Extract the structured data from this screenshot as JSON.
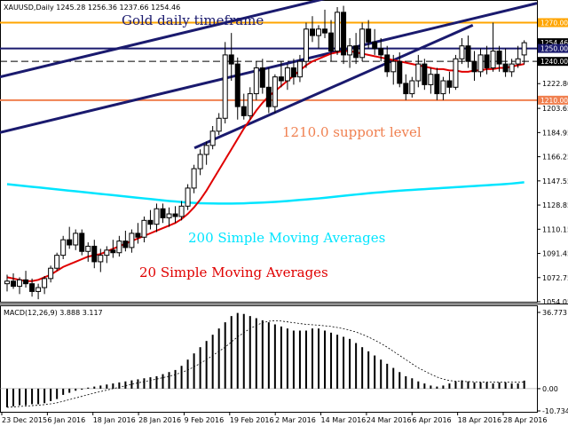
{
  "chart_data": [
    {
      "type": "candlestick",
      "symbol_info": "XAUUSD,Daily  1245.28 1256.36 1237.66 1254.46",
      "title": "Gold daily timeframe",
      "ylim": [
        1054.05,
        1287.5
      ],
      "y_ticks": [
        "1270.00",
        "1254.46",
        "1250.00",
        "1240.00",
        "1222.80",
        "1210.00",
        "1203.65",
        "1184.95",
        "1166.25",
        "1147.55",
        "1128.85",
        "1110.15",
        "1091.45",
        "1072.75",
        "1054.05"
      ],
      "tagged_levels": [
        {
          "label": "1270.00",
          "value": 1270.0,
          "color": "#ffa500"
        },
        {
          "label": "1254.46",
          "value": 1254.46,
          "color": "#000000"
        },
        {
          "label": "1250.00",
          "value": 1250.0,
          "color": "#1a1a6e"
        },
        {
          "label": "1240.00",
          "value": 1240.0,
          "color": "#000000"
        },
        {
          "label": "1210.00",
          "value": 1210.0,
          "color": "#f08050"
        }
      ],
      "x_labels": [
        "23 Dec 2015",
        "6 Jan 2016",
        "18 Jan 2016",
        "28 Jan 2016",
        "9 Feb 2016",
        "19 Feb 2016",
        "2 Mar 2016",
        "14 Mar 2016",
        "24 Mar 2016",
        "6 Apr 2016",
        "18 Apr 2016",
        "28 Apr 2016"
      ],
      "horizontal_lines": [
        {
          "value": 1270.0,
          "color": "#ffa500",
          "style": "solid"
        },
        {
          "value": 1250.0,
          "color": "#1a1a6e",
          "style": "solid"
        },
        {
          "value": 1240.0,
          "color": "#000000",
          "style": "dashed"
        },
        {
          "value": 1210.0,
          "color": "#f08050",
          "style": "solid"
        }
      ],
      "candles": [
        {
          "o": 1068,
          "h": 1075,
          "l": 1062,
          "c": 1070
        },
        {
          "o": 1070,
          "h": 1076,
          "l": 1064,
          "c": 1066
        },
        {
          "o": 1066,
          "h": 1073,
          "l": 1060,
          "c": 1071
        },
        {
          "o": 1071,
          "h": 1078,
          "l": 1065,
          "c": 1068
        },
        {
          "o": 1068,
          "h": 1072,
          "l": 1058,
          "c": 1062
        },
        {
          "o": 1062,
          "h": 1068,
          "l": 1056,
          "c": 1065
        },
        {
          "o": 1065,
          "h": 1074,
          "l": 1060,
          "c": 1072
        },
        {
          "o": 1072,
          "h": 1082,
          "l": 1069,
          "c": 1080
        },
        {
          "o": 1080,
          "h": 1092,
          "l": 1078,
          "c": 1090
        },
        {
          "o": 1090,
          "h": 1105,
          "l": 1087,
          "c": 1102
        },
        {
          "o": 1102,
          "h": 1112,
          "l": 1095,
          "c": 1098
        },
        {
          "o": 1098,
          "h": 1110,
          "l": 1094,
          "c": 1107
        },
        {
          "o": 1107,
          "h": 1110,
          "l": 1090,
          "c": 1093
        },
        {
          "o": 1093,
          "h": 1100,
          "l": 1085,
          "c": 1097
        },
        {
          "o": 1097,
          "h": 1102,
          "l": 1080,
          "c": 1085
        },
        {
          "o": 1085,
          "h": 1095,
          "l": 1077,
          "c": 1090
        },
        {
          "o": 1090,
          "h": 1097,
          "l": 1084,
          "c": 1094
        },
        {
          "o": 1094,
          "h": 1102,
          "l": 1088,
          "c": 1092
        },
        {
          "o": 1092,
          "h": 1105,
          "l": 1089,
          "c": 1101
        },
        {
          "o": 1101,
          "h": 1109,
          "l": 1093,
          "c": 1096
        },
        {
          "o": 1096,
          "h": 1110,
          "l": 1092,
          "c": 1107
        },
        {
          "o": 1107,
          "h": 1115,
          "l": 1099,
          "c": 1104
        },
        {
          "o": 1104,
          "h": 1120,
          "l": 1100,
          "c": 1117
        },
        {
          "o": 1117,
          "h": 1125,
          "l": 1110,
          "c": 1114
        },
        {
          "o": 1114,
          "h": 1130,
          "l": 1108,
          "c": 1126
        },
        {
          "o": 1126,
          "h": 1130,
          "l": 1115,
          "c": 1119
        },
        {
          "o": 1119,
          "h": 1127,
          "l": 1112,
          "c": 1122
        },
        {
          "o": 1122,
          "h": 1128,
          "l": 1115,
          "c": 1120
        },
        {
          "o": 1120,
          "h": 1132,
          "l": 1117,
          "c": 1128
        },
        {
          "o": 1128,
          "h": 1145,
          "l": 1125,
          "c": 1142
        },
        {
          "o": 1142,
          "h": 1160,
          "l": 1138,
          "c": 1157
        },
        {
          "o": 1157,
          "h": 1172,
          "l": 1152,
          "c": 1168
        },
        {
          "o": 1168,
          "h": 1178,
          "l": 1160,
          "c": 1175
        },
        {
          "o": 1175,
          "h": 1190,
          "l": 1172,
          "c": 1186
        },
        {
          "o": 1186,
          "h": 1200,
          "l": 1183,
          "c": 1196
        },
        {
          "o": 1196,
          "h": 1255,
          "l": 1192,
          "c": 1245
        },
        {
          "o": 1245,
          "h": 1262,
          "l": 1225,
          "c": 1238
        },
        {
          "o": 1238,
          "h": 1243,
          "l": 1195,
          "c": 1205
        },
        {
          "o": 1205,
          "h": 1215,
          "l": 1195,
          "c": 1198
        },
        {
          "o": 1198,
          "h": 1220,
          "l": 1195,
          "c": 1215
        },
        {
          "o": 1215,
          "h": 1240,
          "l": 1210,
          "c": 1235
        },
        {
          "o": 1235,
          "h": 1242,
          "l": 1215,
          "c": 1220
        },
        {
          "o": 1220,
          "h": 1235,
          "l": 1200,
          "c": 1205
        },
        {
          "o": 1205,
          "h": 1230,
          "l": 1200,
          "c": 1228
        },
        {
          "o": 1228,
          "h": 1240,
          "l": 1220,
          "c": 1225
        },
        {
          "o": 1225,
          "h": 1238,
          "l": 1218,
          "c": 1235
        },
        {
          "o": 1235,
          "h": 1242,
          "l": 1222,
          "c": 1228
        },
        {
          "o": 1228,
          "h": 1245,
          "l": 1224,
          "c": 1240
        },
        {
          "o": 1240,
          "h": 1270,
          "l": 1235,
          "c": 1265
        },
        {
          "o": 1265,
          "h": 1275,
          "l": 1255,
          "c": 1260
        },
        {
          "o": 1260,
          "h": 1268,
          "l": 1250,
          "c": 1265
        },
        {
          "o": 1265,
          "h": 1280,
          "l": 1258,
          "c": 1262
        },
        {
          "o": 1262,
          "h": 1272,
          "l": 1240,
          "c": 1248
        },
        {
          "o": 1248,
          "h": 1282,
          "l": 1245,
          "c": 1278
        },
        {
          "o": 1278,
          "h": 1283,
          "l": 1238,
          "c": 1245
        },
        {
          "o": 1245,
          "h": 1258,
          "l": 1235,
          "c": 1252
        },
        {
          "o": 1252,
          "h": 1262,
          "l": 1238,
          "c": 1243
        },
        {
          "o": 1243,
          "h": 1270,
          "l": 1240,
          "c": 1265
        },
        {
          "o": 1265,
          "h": 1272,
          "l": 1250,
          "c": 1255
        },
        {
          "o": 1255,
          "h": 1265,
          "l": 1245,
          "c": 1250
        },
        {
          "o": 1250,
          "h": 1258,
          "l": 1240,
          "c": 1245
        },
        {
          "o": 1245,
          "h": 1252,
          "l": 1228,
          "c": 1232
        },
        {
          "o": 1232,
          "h": 1245,
          "l": 1222,
          "c": 1240
        },
        {
          "o": 1240,
          "h": 1247,
          "l": 1220,
          "c": 1223
        },
        {
          "o": 1223,
          "h": 1230,
          "l": 1210,
          "c": 1215
        },
        {
          "o": 1215,
          "h": 1228,
          "l": 1212,
          "c": 1225
        },
        {
          "o": 1225,
          "h": 1245,
          "l": 1220,
          "c": 1238
        },
        {
          "o": 1238,
          "h": 1242,
          "l": 1218,
          "c": 1222
        },
        {
          "o": 1222,
          "h": 1235,
          "l": 1215,
          "c": 1230
        },
        {
          "o": 1230,
          "h": 1235,
          "l": 1210,
          "c": 1215
        },
        {
          "o": 1215,
          "h": 1228,
          "l": 1210,
          "c": 1225
        },
        {
          "o": 1225,
          "h": 1232,
          "l": 1215,
          "c": 1220
        },
        {
          "o": 1220,
          "h": 1245,
          "l": 1218,
          "c": 1242
        },
        {
          "o": 1242,
          "h": 1258,
          "l": 1238,
          "c": 1252
        },
        {
          "o": 1252,
          "h": 1260,
          "l": 1235,
          "c": 1240
        },
        {
          "o": 1240,
          "h": 1248,
          "l": 1225,
          "c": 1232
        },
        {
          "o": 1232,
          "h": 1250,
          "l": 1228,
          "c": 1245
        },
        {
          "o": 1245,
          "h": 1252,
          "l": 1230,
          "c": 1235
        },
        {
          "o": 1235,
          "h": 1270,
          "l": 1232,
          "c": 1248
        },
        {
          "o": 1248,
          "h": 1252,
          "l": 1232,
          "c": 1238
        },
        {
          "o": 1238,
          "h": 1250,
          "l": 1228,
          "c": 1232
        },
        {
          "o": 1232,
          "h": 1242,
          "l": 1228,
          "c": 1238
        },
        {
          "o": 1238,
          "h": 1252,
          "l": 1235,
          "c": 1242
        },
        {
          "o": 1245,
          "h": 1256.36,
          "l": 1237.66,
          "c": 1254.46
        }
      ],
      "trendlines": [
        {
          "name": "lower channel line",
          "x": [
            "23 Dec 2015",
            "28 Apr 2016"
          ],
          "y": [
            1185,
            1285
          ],
          "color": "#1a1a6e"
        },
        {
          "name": "upper channel line",
          "x": [
            "23 Dec 2015",
            "28 Apr 2016"
          ],
          "y": [
            1228,
            1328
          ],
          "color": "#1a1a6e"
        },
        {
          "name": "rising support line",
          "x": [
            "9 Feb 2016",
            "18 Apr 2016"
          ],
          "y": [
            1173,
            1268
          ],
          "color": "#1a1a6e"
        }
      ],
      "sma20": {
        "name": "20 Simple Moving Averages",
        "color": "#e00000",
        "values": [
          1073,
          1072,
          1071,
          1070,
          1070,
          1071,
          1073,
          1075,
          1078,
          1081,
          1083,
          1085,
          1087,
          1089,
          1090,
          1091,
          1093,
          1095,
          1097,
          1099,
          1101,
          1103,
          1105,
          1107,
          1109,
          1111,
          1113,
          1115,
          1118,
          1122,
          1127,
          1133,
          1140,
          1148,
          1156,
          1164,
          1172,
          1180,
          1188,
          1195,
          1202,
          1208,
          1213,
          1217,
          1221,
          1225,
          1229,
          1233,
          1237,
          1240,
          1242,
          1244,
          1246,
          1247,
          1248,
          1248,
          1247,
          1246,
          1245,
          1244,
          1243,
          1242,
          1241,
          1240,
          1239,
          1238,
          1237,
          1236,
          1235,
          1234,
          1234,
          1233,
          1233,
          1232,
          1232,
          1233,
          1233,
          1234,
          1234,
          1235,
          1235,
          1236,
          1237,
          1238
        ]
      },
      "sma200": {
        "name": "200 Simple Moving Averages",
        "color": "#00e5ff",
        "values": [
          1145,
          1144.5,
          1144,
          1143.5,
          1143,
          1142.5,
          1142,
          1141.5,
          1141,
          1140.5,
          1140,
          1139.5,
          1139,
          1138.5,
          1138,
          1137.5,
          1137,
          1136.5,
          1136,
          1135.5,
          1135,
          1134.5,
          1134,
          1133.5,
          1133,
          1132.5,
          1132,
          1131.6,
          1131.2,
          1130.8,
          1130.5,
          1130.3,
          1130.2,
          1130.1,
          1130,
          1130,
          1130,
          1130.1,
          1130.2,
          1130.4,
          1130.6,
          1130.8,
          1131,
          1131.3,
          1131.6,
          1132,
          1132.4,
          1132.8,
          1133.2,
          1133.6,
          1134,
          1134.5,
          1135,
          1135.5,
          1136,
          1136.5,
          1137,
          1137.5,
          1138,
          1138.4,
          1138.8,
          1139.2,
          1139.6,
          1140,
          1140.3,
          1140.6,
          1140.9,
          1141.2,
          1141.5,
          1141.8,
          1142.1,
          1142.4,
          1142.7,
          1143,
          1143.3,
          1143.6,
          1143.9,
          1144.2,
          1144.5,
          1144.8,
          1145.1,
          1145.5,
          1146,
          1146.5
        ]
      },
      "annotations": [
        {
          "text": "Gold daily timeframe",
          "color": "#1a1a6e"
        },
        {
          "text": "1210.0 support level",
          "color": "#f08050"
        },
        {
          "text": "200 Simple Moving Averages",
          "color": "#00e5ff"
        },
        {
          "text": "20 Simple Moving Averages",
          "color": "#e00000"
        }
      ]
    },
    {
      "type": "bar",
      "label": "MACD(12,26,9) 3.888 3.117",
      "ylim": [
        -10.734,
        36.773
      ],
      "y_ticks": [
        "36.773",
        "0.00",
        "-10.734"
      ],
      "histogram": [
        -9,
        -8.5,
        -8,
        -8,
        -7.5,
        -7.5,
        -7,
        -6,
        -5,
        -3,
        -2,
        -1,
        -0.5,
        0.5,
        1,
        1.5,
        2,
        2.5,
        3,
        3.5,
        4,
        4.5,
        5,
        5.5,
        6,
        7,
        8,
        9,
        11,
        14,
        17,
        20,
        23,
        26,
        29,
        32,
        35,
        36.5,
        36,
        35,
        34,
        33,
        32,
        31,
        30,
        29,
        28,
        28,
        28,
        29,
        29,
        28,
        27,
        26,
        25,
        24,
        22,
        20,
        18,
        16,
        14,
        12,
        10,
        8,
        6,
        5,
        3.5,
        2.5,
        1.5,
        1,
        1.5,
        2.5,
        3.5,
        4,
        3.5,
        3,
        3,
        3,
        2.5,
        3,
        3,
        2.5,
        2.5,
        3.888
      ],
      "signal": [
        -9,
        -8.8,
        -8.6,
        -8.4,
        -8.2,
        -8,
        -7.7,
        -7.3,
        -6.8,
        -6.1,
        -5.3,
        -4.5,
        -3.7,
        -2.9,
        -2.1,
        -1.4,
        -0.7,
        0,
        0.7,
        1.4,
        2.1,
        2.8,
        3.4,
        4,
        4.6,
        5.3,
        6,
        6.8,
        7.8,
        9,
        10.5,
        12.2,
        14,
        16,
        18,
        20,
        22.5,
        25,
        27,
        29,
        30.5,
        31.8,
        32.5,
        32.8,
        32.6,
        32.2,
        31.8,
        31.4,
        31,
        30.8,
        30.6,
        30.3,
        30,
        29.5,
        28.9,
        28.2,
        27.3,
        26.2,
        24.9,
        23.4,
        21.8,
        20,
        18,
        16,
        14,
        12,
        10,
        8.5,
        7,
        5.6,
        4.6,
        3.9,
        3.6,
        3.5,
        3.4,
        3.3,
        3.2,
        3.2,
        3.1,
        3.1,
        3.1,
        3.1,
        3.1,
        3.117
      ]
    }
  ]
}
